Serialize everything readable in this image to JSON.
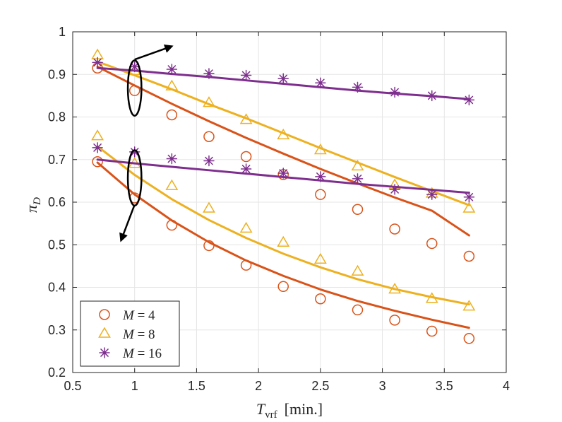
{
  "chart_data": {
    "type": "scatter",
    "title": "",
    "xlabel": {
      "symbol": "T",
      "subscript": "vrf",
      "unit": "[min.]"
    },
    "ylabel": {
      "symbol": "π",
      "subscript": "D"
    },
    "xlim": [
      0.5,
      4
    ],
    "ylim": [
      0.2,
      1
    ],
    "xticks": [
      0.5,
      1,
      1.5,
      2,
      2.5,
      3,
      3.5,
      4
    ],
    "xtick_labels": [
      "0.5",
      "1",
      "1.5",
      "2",
      "2.5",
      "3",
      "3.5",
      "4"
    ],
    "yticks": [
      0.2,
      0.3,
      0.4,
      0.5,
      0.6,
      0.7,
      0.8,
      0.9,
      1
    ],
    "ytick_labels": [
      "0.2",
      "0.3",
      "0.4",
      "0.5",
      "0.6",
      "0.7",
      "0.8",
      "0.9",
      "1"
    ],
    "grid": true,
    "legend_position": "bottom-left",
    "x": [
      0.7,
      1.0,
      1.3,
      1.6,
      1.9,
      2.2,
      2.5,
      2.8,
      3.1,
      3.4,
      3.7
    ],
    "series": [
      {
        "name": "M = 4",
        "label_italic": "M",
        "label_rest": " = 4",
        "marker": "circle",
        "color": "#D95319",
        "group": "upper",
        "markers": [
          0.915,
          0.862,
          0.805,
          0.754,
          0.707,
          0.665,
          0.618,
          0.583,
          0.537,
          0.503,
          0.473
        ],
        "fit": [
          0.918,
          0.874,
          0.831,
          0.79,
          0.751,
          0.714,
          0.678,
          0.644,
          0.611,
          0.58,
          0.522
        ]
      },
      {
        "name": "M = 8",
        "label_italic": "M",
        "label_rest": " = 8",
        "marker": "triangle",
        "color": "#EDB120",
        "group": "upper",
        "markers": [
          0.945,
          0.908,
          0.872,
          0.833,
          0.793,
          0.757,
          0.722,
          0.684,
          0.64,
          0.62,
          0.585
        ],
        "fit": [
          0.93,
          0.898,
          0.865,
          0.83,
          0.797,
          0.762,
          0.727,
          0.693,
          0.659,
          0.626,
          0.593
        ]
      },
      {
        "name": "M = 16",
        "label_italic": "M",
        "label_rest": " = 16",
        "marker": "asterisk",
        "color": "#7E2F8E",
        "group": "upper",
        "markers": [
          0.928,
          0.918,
          0.912,
          0.902,
          0.898,
          0.89,
          0.88,
          0.87,
          0.858,
          0.85,
          0.84
        ],
        "fit": [
          0.915,
          0.909,
          0.901,
          0.894,
          0.886,
          0.878,
          0.87,
          0.862,
          0.855,
          0.849,
          0.842
        ]
      },
      {
        "name": "M = 4",
        "label_italic": "M",
        "label_rest": " = 4",
        "marker": "circle",
        "color": "#D95319",
        "group": "lower",
        "markers": [
          0.695,
          0.61,
          0.546,
          0.498,
          0.452,
          0.402,
          0.373,
          0.347,
          0.323,
          0.297,
          0.28
        ],
        "fit": [
          0.693,
          0.618,
          0.557,
          0.506,
          0.463,
          0.427,
          0.395,
          0.368,
          0.345,
          0.324,
          0.305
        ]
      },
      {
        "name": "M = 8",
        "label_italic": "M",
        "label_rest": " = 8",
        "marker": "triangle",
        "color": "#EDB120",
        "group": "lower",
        "markers": [
          0.755,
          0.69,
          0.638,
          0.585,
          0.538,
          0.505,
          0.465,
          0.437,
          0.395,
          0.373,
          0.355
        ],
        "fit": [
          0.731,
          0.664,
          0.607,
          0.558,
          0.516,
          0.479,
          0.447,
          0.419,
          0.396,
          0.377,
          0.36
        ]
      },
      {
        "name": "M = 16",
        "label_italic": "M",
        "label_rest": " = 16",
        "marker": "asterisk",
        "color": "#7E2F8E",
        "group": "lower",
        "markers": [
          0.728,
          0.718,
          0.702,
          0.697,
          0.678,
          0.668,
          0.66,
          0.655,
          0.63,
          0.618,
          0.612
        ],
        "fit": [
          0.7,
          0.691,
          0.683,
          0.675,
          0.667,
          0.659,
          0.651,
          0.643,
          0.636,
          0.629,
          0.622
        ]
      }
    ],
    "annotations": [
      {
        "type": "ellipse-arrow",
        "target": "upper curves",
        "center": [
          1.0,
          0.868
        ],
        "radii": [
          0.055,
          0.065
        ],
        "arrow_from": [
          1.0,
          0.935
        ],
        "arrow_to": [
          1.3,
          0.966
        ]
      },
      {
        "type": "ellipse-arrow",
        "target": "lower curves",
        "center": [
          1.0,
          0.657
        ],
        "radii": [
          0.055,
          0.065
        ],
        "arrow_from": [
          0.997,
          0.592
        ],
        "arrow_to": [
          0.89,
          0.51
        ]
      }
    ]
  }
}
